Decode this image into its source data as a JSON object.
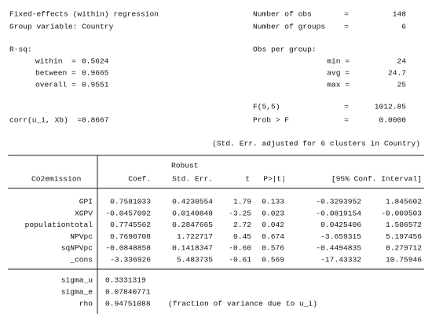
{
  "summary": {
    "title": "Fixed-effects (within) regression",
    "group_var": "Group variable: Country",
    "rsq_label": "R-sq:",
    "rsq": [
      {
        "label": "within  =",
        "value": "0.5624"
      },
      {
        "label": "between =",
        "value": "0.9665"
      },
      {
        "label": "overall =",
        "value": "0.9551"
      }
    ],
    "corr": {
      "label": "corr(u_i, Xb)  =",
      "value": "0.8667"
    },
    "counts": [
      {
        "label": "Number of obs",
        "sign": "=",
        "value": "148"
      },
      {
        "label": "Number of groups",
        "sign": "=",
        "value": "6"
      }
    ],
    "obs_label": "Obs per group:",
    "obs": [
      {
        "label": "min =",
        "value": "24"
      },
      {
        "label": "avg =",
        "value": "24.7"
      },
      {
        "label": "max =",
        "value": "25"
      }
    ],
    "tests": [
      {
        "label": "F(5,5)",
        "sign": "=",
        "value": "1012.85"
      },
      {
        "label": "Prob > F",
        "sign": "=",
        "value": "0.0000"
      }
    ]
  },
  "table": {
    "note": "(Std. Err. adjusted for 6 clusters in Country)",
    "header_top": "Robust",
    "header": [
      "Co2emission",
      "Coef.",
      "Std. Err.",
      "t",
      "P>|t|",
      "[95% Conf. Interval]"
    ],
    "rows": [
      [
        "GPI",
        "0.7581033",
        "0.4230554",
        "1.79",
        "0.133",
        "-0.3293952",
        "1.845602"
      ],
      [
        "XGPV",
        "-0.0457092",
        "0.0140848",
        "-3.25",
        "0.023",
        "-0.0819154",
        "-0.009503"
      ],
      [
        "populationtotal",
        "0.7745562",
        "0.2847665",
        "2.72",
        "0.042",
        "0.0425406",
        "1.506572"
      ],
      [
        "NPVpc",
        "0.7690708",
        "1.722717",
        "0.45",
        "0.674",
        "-3.659315",
        "5.197456"
      ],
      [
        "sqNPVpc",
        "-0.0848858",
        "0.1418347",
        "-0.60",
        "0.576",
        "-0.4494835",
        "0.279712"
      ],
      [
        "_cons",
        "-3.336926",
        "5.483735",
        "-0.61",
        "0.569",
        "-17.43332",
        "10.75946"
      ]
    ],
    "sigma": [
      {
        "label": "sigma_u",
        "value": "0.3331319"
      },
      {
        "label": "sigma_e",
        "value": "0.07840771"
      },
      {
        "label": "rho",
        "value": "0.94751088",
        "note": "(fraction of variance due to u_i)"
      }
    ]
  }
}
